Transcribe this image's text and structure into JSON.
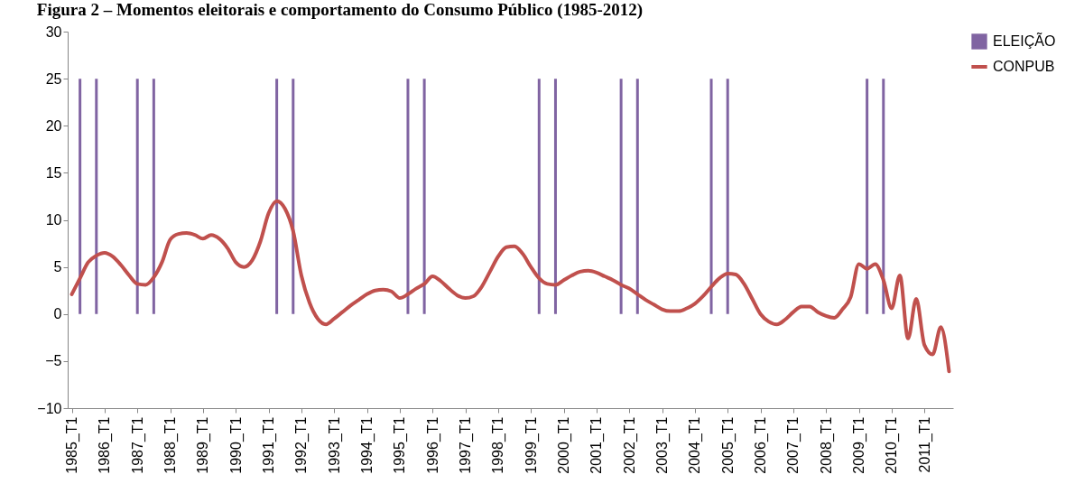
{
  "chart_data": {
    "type": "line",
    "title": "Figura 2 – Momentos eleitorais e comportamento do Consumo Público (1985-2012)",
    "categories": [
      "1985_T1",
      null,
      null,
      null,
      "1986_T1",
      null,
      null,
      null,
      "1987_T1",
      null,
      null,
      null,
      "1988_T1",
      null,
      null,
      null,
      "1989_T1",
      null,
      null,
      null,
      "1990_T1",
      null,
      null,
      null,
      "1991_T1",
      null,
      null,
      null,
      "1992_T1",
      null,
      null,
      null,
      "1993_T1",
      null,
      null,
      null,
      "1994_T1",
      null,
      null,
      null,
      "1995_T1",
      null,
      null,
      null,
      "1996_T1",
      null,
      null,
      null,
      "1997_T1",
      null,
      null,
      null,
      "1998_T1",
      null,
      null,
      null,
      "1999_T1",
      null,
      null,
      null,
      "2000_T1",
      null,
      null,
      null,
      "2001_T1",
      null,
      null,
      null,
      "2002_T1",
      null,
      null,
      null,
      "2003_T1",
      null,
      null,
      null,
      "2004_T1",
      null,
      null,
      null,
      "2005_T1",
      null,
      null,
      null,
      "2006_T1",
      null,
      null,
      null,
      "2007_T1",
      null,
      null,
      null,
      "2008_T1",
      null,
      null,
      null,
      "2009_T1",
      null,
      null,
      null,
      "2010_T1",
      null,
      null,
      null,
      "2011_T1",
      null,
      null,
      null
    ],
    "series": [
      {
        "name": "ELEIÇÃO",
        "type": "bar",
        "color": "#8064a2",
        "values": [
          null,
          25,
          null,
          25,
          null,
          null,
          null,
          null,
          25,
          null,
          25,
          null,
          null,
          null,
          null,
          null,
          null,
          null,
          null,
          null,
          null,
          null,
          null,
          null,
          null,
          25,
          null,
          25,
          null,
          null,
          null,
          null,
          null,
          null,
          null,
          null,
          null,
          null,
          null,
          null,
          null,
          25,
          null,
          25,
          null,
          null,
          null,
          null,
          null,
          null,
          null,
          null,
          null,
          null,
          null,
          null,
          null,
          25,
          null,
          25,
          null,
          null,
          null,
          null,
          null,
          null,
          null,
          25,
          null,
          25,
          null,
          null,
          null,
          null,
          null,
          null,
          null,
          null,
          25,
          null,
          25,
          null,
          null,
          null,
          null,
          null,
          null,
          null,
          null,
          null,
          null,
          null,
          null,
          null,
          null,
          null,
          null,
          25,
          null,
          25,
          null,
          null,
          null,
          null,
          null,
          null,
          null,
          null
        ]
      },
      {
        "name": "CONPUB",
        "color": "#c0504d",
        "values": [
          2.1,
          3.8,
          5.5,
          6.2,
          6.5,
          6.1,
          5.2,
          4.1,
          3.2,
          3.1,
          3.9,
          5.5,
          7.9,
          8.5,
          8.6,
          8.4,
          8.0,
          8.4,
          8.0,
          7.0,
          5.5,
          5.0,
          5.7,
          7.7,
          10.7,
          12.0,
          11.2,
          8.8,
          4.1,
          1.2,
          -0.5,
          -1.1,
          -0.5,
          0.2,
          0.9,
          1.5,
          2.1,
          2.5,
          2.6,
          2.4,
          1.7,
          2.1,
          2.7,
          3.2,
          4.0,
          3.5,
          2.7,
          2.0,
          1.7,
          1.9,
          2.9,
          4.5,
          6.1,
          7.1,
          7.2,
          6.4,
          5.0,
          3.8,
          3.2,
          3.1,
          3.6,
          4.1,
          4.5,
          4.6,
          4.4,
          4.0,
          3.6,
          3.1,
          2.7,
          2.1,
          1.5,
          1.0,
          0.5,
          0.3,
          0.3,
          0.6,
          1.1,
          1.9,
          2.9,
          3.8,
          4.3,
          4.2,
          3.2,
          1.6,
          0.0,
          -0.8,
          -1.1,
          -0.6,
          0.2,
          0.8,
          0.8,
          0.2,
          -0.2,
          -0.4,
          0.5,
          1.8,
          5.3,
          4.8,
          5.3,
          3.6,
          0.6,
          4.1,
          -2.6,
          1.6,
          -3.3,
          -4.3,
          -1.4,
          -6.1
        ]
      }
    ],
    "ylim": [
      -10,
      30
    ],
    "yticks": [
      -10,
      -5,
      0,
      5,
      10,
      15,
      20,
      25,
      30
    ],
    "grid": false,
    "legend": "right"
  }
}
